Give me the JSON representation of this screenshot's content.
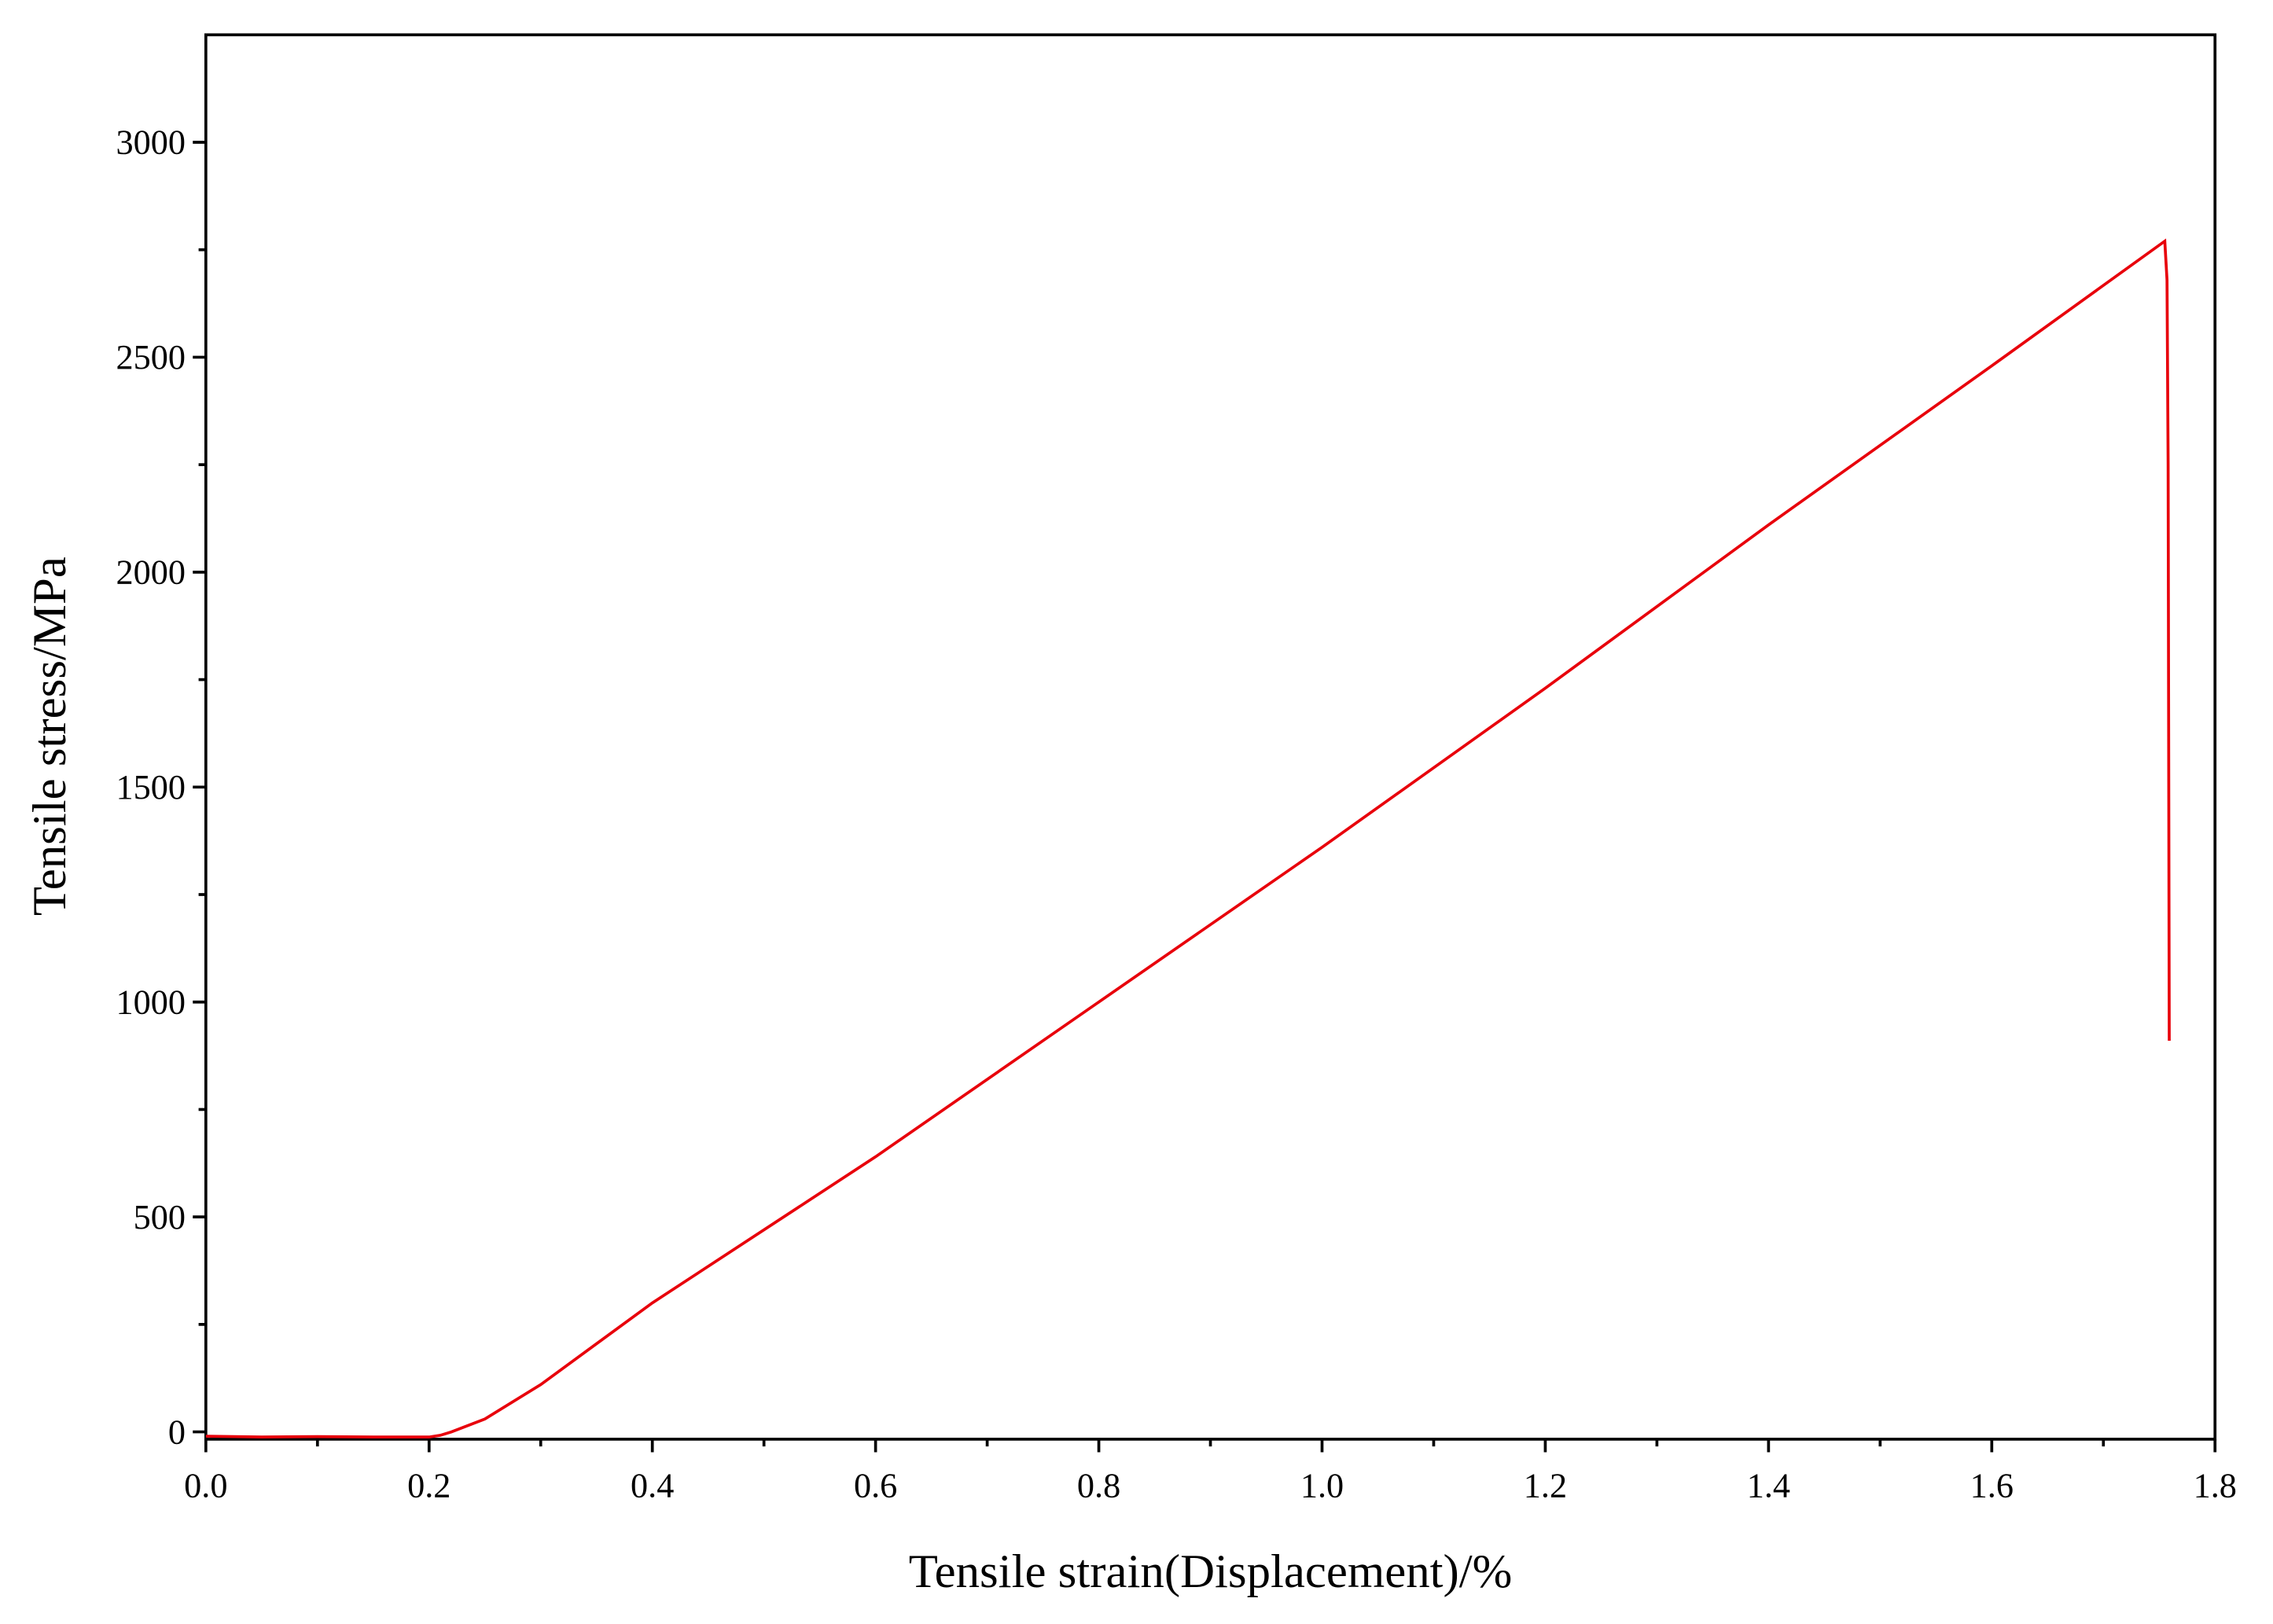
{
  "chart_data": {
    "type": "line",
    "xlabel": "Tensile strain(Displacement)/%",
    "ylabel": "Tensile stress/MPa",
    "x": [
      0,
      0.05,
      0.1,
      0.15,
      0.2,
      0.21,
      0.22,
      0.25,
      0.3,
      0.4,
      0.6,
      0.8,
      1.0,
      1.2,
      1.4,
      1.6,
      1.755,
      1.757,
      1.758,
      1.759
    ],
    "series": [
      {
        "name": "Tensile stress",
        "color": "#e8000b",
        "values": [
          -10,
          -12,
          -11,
          -12,
          -12,
          -8,
          0,
          30,
          110,
          300,
          640,
          1000,
          1360,
          1730,
          2110,
          2480,
          2770,
          2680,
          2250,
          910
        ]
      }
    ],
    "xlim": [
      0,
      1.8
    ],
    "ylim": [
      -17,
      3250
    ],
    "xticks": [
      {
        "value": 0,
        "label": "0.0"
      },
      0.2,
      0.4,
      0.6,
      0.8,
      {
        "value": 1,
        "label": "1.0"
      },
      1.2,
      1.4,
      1.6,
      1.8
    ],
    "yticks": [
      0,
      500,
      1000,
      1500,
      2000,
      2500,
      3000
    ],
    "grid": false,
    "legend": false
  }
}
